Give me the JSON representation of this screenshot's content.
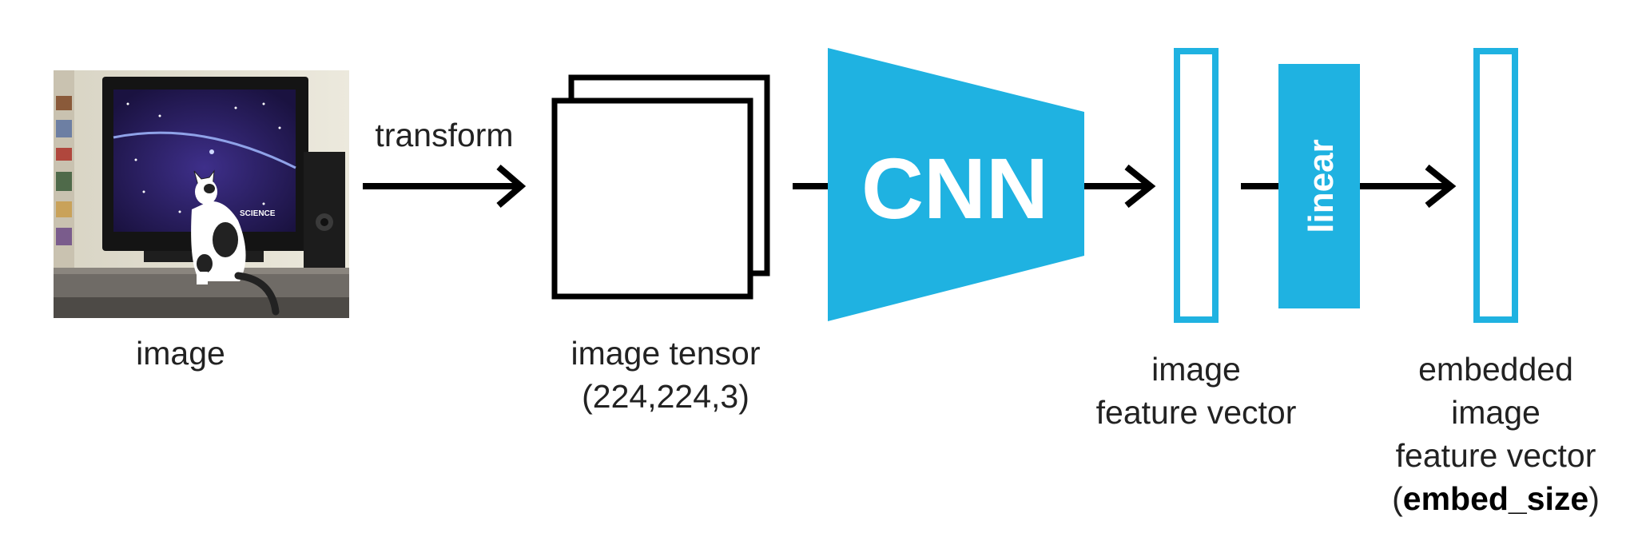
{
  "diagram": {
    "input": {
      "label": "image"
    },
    "transform": {
      "label": "transform"
    },
    "tensor": {
      "label_line1": "image tensor",
      "label_line2": "(224,224,3)"
    },
    "cnn": {
      "label": "CNN"
    },
    "feature": {
      "label_line1": "image",
      "label_line2": "feature vector"
    },
    "linear": {
      "label": "linear"
    },
    "embedded": {
      "label_line1": "embedded",
      "label_line2": "image",
      "label_line3": "feature vector",
      "label_paren_open": "(",
      "label_bold": "embed_size",
      "label_paren_close": ")"
    },
    "tv_logo_text": "SCIENCE"
  },
  "colors": {
    "accent": "#1fb2e1",
    "stroke": "#000000",
    "text": "#222222"
  }
}
